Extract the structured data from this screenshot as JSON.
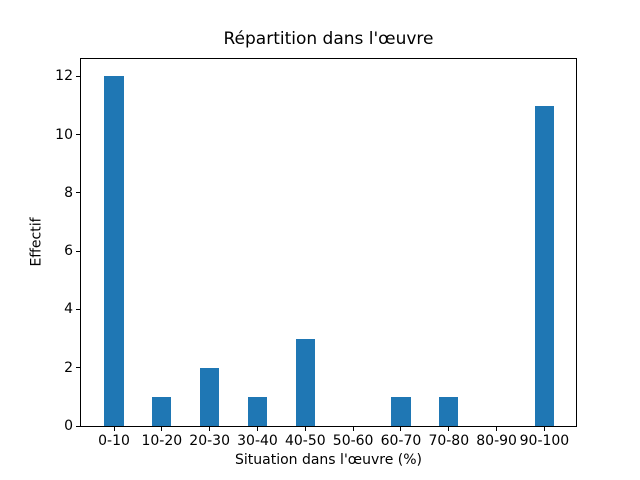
{
  "chart_data": {
    "type": "bar",
    "title": "Répartition dans l'œuvre",
    "xlabel": "Situation dans l'œuvre (%)",
    "ylabel": "Effectif",
    "categories": [
      "0-10",
      "10-20",
      "20-30",
      "30-40",
      "40-50",
      "50-60",
      "60-70",
      "70-80",
      "80-90",
      "90-100"
    ],
    "values": [
      12,
      1,
      2,
      1,
      3,
      0,
      1,
      1,
      0,
      11
    ],
    "yticks": [
      0,
      2,
      4,
      6,
      8,
      10,
      12
    ],
    "ylim": [
      0,
      12.6
    ],
    "xlim": [
      -0.69,
      9.66
    ],
    "bar_width": 0.4,
    "bar_color": "#1f77b4",
    "background_color": "#ffffff",
    "axis_color": "#000000",
    "grid": "off",
    "legend": "none"
  }
}
